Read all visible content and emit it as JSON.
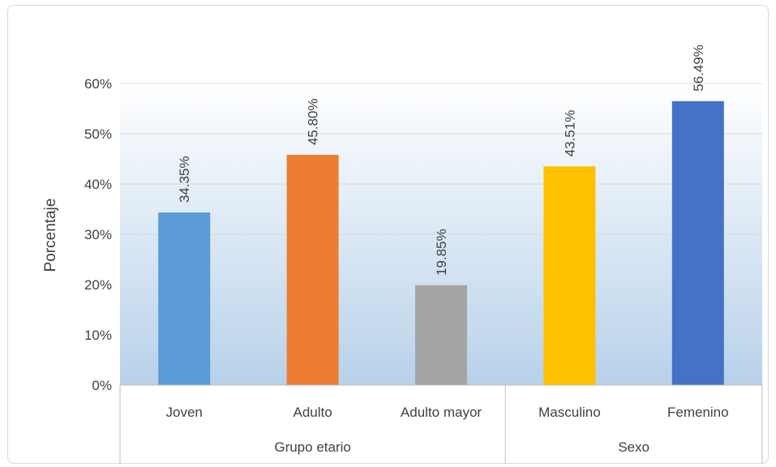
{
  "chart_data": {
    "type": "bar",
    "ylabel": "Porcentaje",
    "ylim": [
      0,
      60
    ],
    "yticks": [
      "0%",
      "10%",
      "20%",
      "30%",
      "40%",
      "50%",
      "60%"
    ],
    "yticks_values": [
      0,
      10,
      20,
      30,
      40,
      50,
      60
    ],
    "grid": true,
    "legend": "none",
    "groups": [
      {
        "name": "Grupo etario",
        "categories": [
          "Joven",
          "Adulto",
          "Adulto mayor"
        ]
      },
      {
        "name": "Sexo",
        "categories": [
          "Masculino",
          "Femenino"
        ]
      }
    ],
    "categories": [
      "Joven",
      "Adulto",
      "Adulto mayor",
      "Masculino",
      "Femenino"
    ],
    "values": [
      34.35,
      45.8,
      19.85,
      43.51,
      56.49
    ],
    "data_labels": [
      "34.35%",
      "45.80%",
      "19.85%",
      "43.51%",
      "56.49%"
    ],
    "colors": [
      "#5B9BD5",
      "#ED7D31",
      "#A5A5A5",
      "#FFC000",
      "#4472C4"
    ]
  }
}
